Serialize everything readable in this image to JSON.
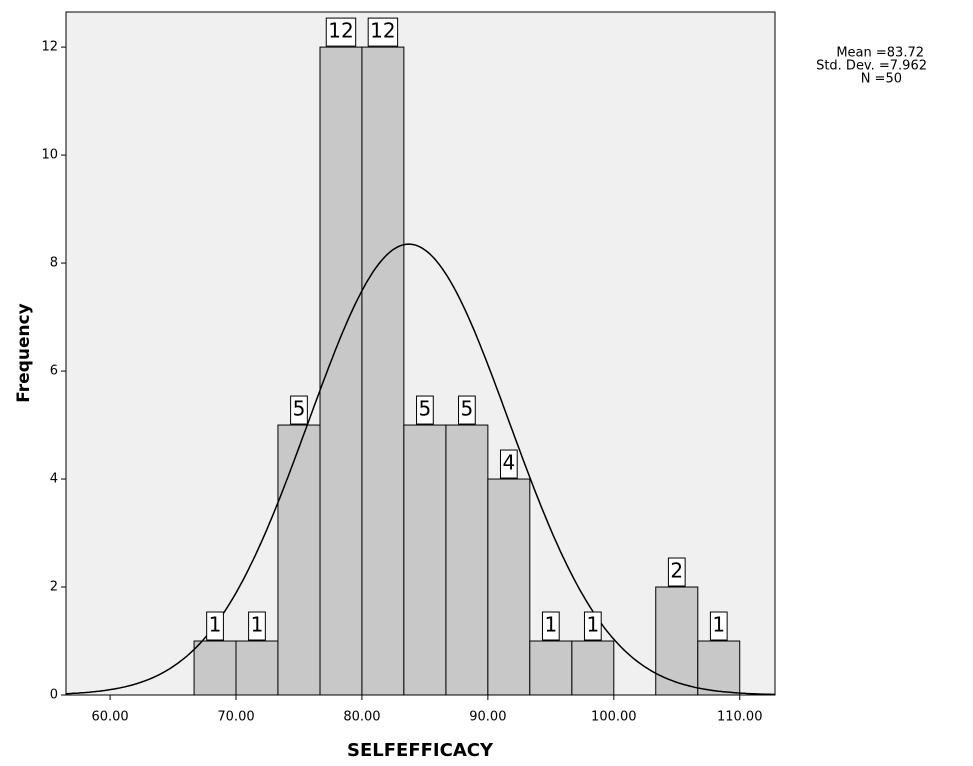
{
  "chart_data": {
    "type": "histogram",
    "x_label": "SELFEFFICACY",
    "y_label": "Frequency",
    "bins": [
      66.67,
      70,
      73.33,
      76.67,
      80,
      83.33,
      86.67,
      90,
      93.33,
      96.67,
      100,
      103.33,
      106.67,
      110
    ],
    "values": [
      1,
      1,
      5,
      12,
      12,
      5,
      5,
      4,
      1,
      1,
      0,
      2,
      1
    ],
    "color": "#c8c8c8",
    "xlim": [
      56.5,
      112.8
    ],
    "ylim": [
      0,
      12.65
    ],
    "xticks": [
      {
        "value": 60,
        "label": "60.00"
      },
      {
        "value": 70,
        "label": "70.00"
      },
      {
        "value": 80,
        "label": "80.00"
      },
      {
        "value": 90,
        "label": "90.00"
      },
      {
        "value": 100,
        "label": "100.00"
      },
      {
        "value": 110,
        "label": "110.00"
      }
    ],
    "yticks": [
      0,
      2,
      4,
      6,
      8,
      10,
      12
    ],
    "normal_curve": {
      "mean": 83.72,
      "sd": 7.962,
      "n": 50
    },
    "annotations": [
      "Mean =83.72",
      "Std. Dev. =7.962",
      "N =50"
    ]
  }
}
